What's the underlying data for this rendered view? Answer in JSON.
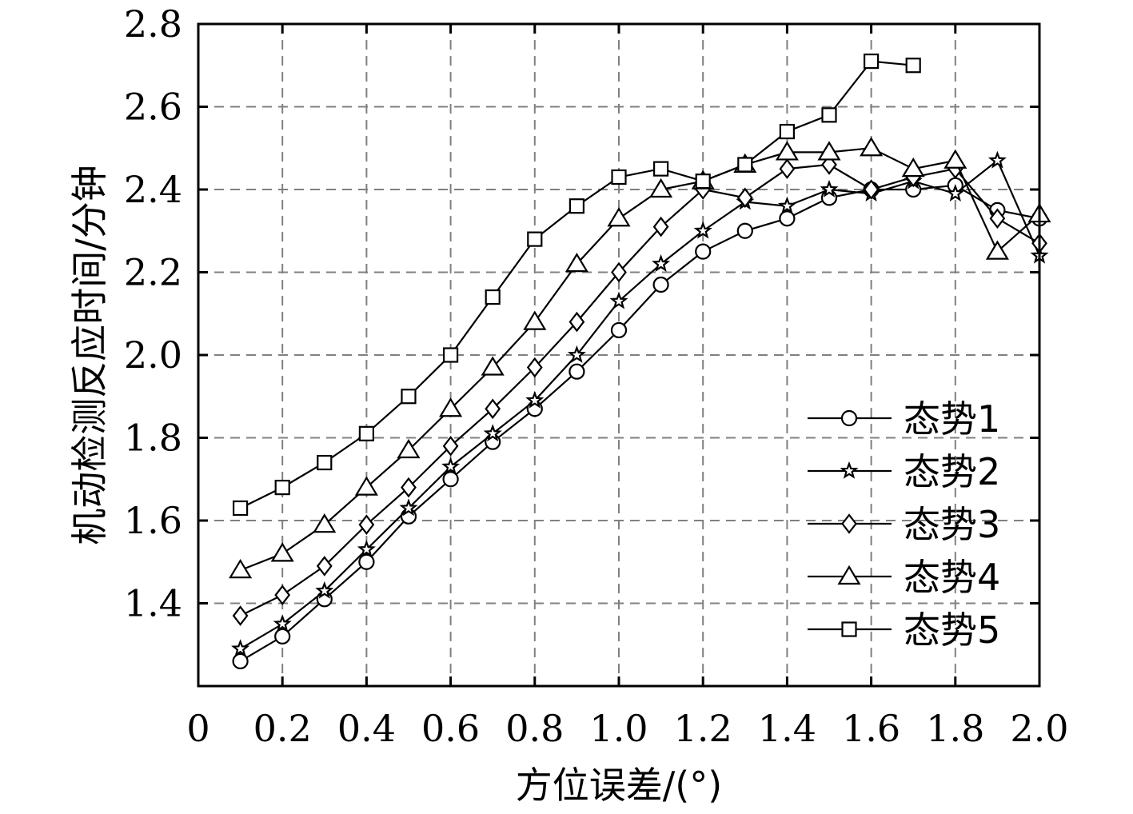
{
  "chart_data": {
    "type": "line",
    "xlabel": "方位误差/(°)",
    "ylabel": "机动检测反应时间/分钟",
    "xlim": [
      0,
      2.0
    ],
    "ylim": [
      1.2,
      2.8
    ],
    "xticks": [
      0,
      0.2,
      0.4,
      0.6,
      0.8,
      1.0,
      1.2,
      1.4,
      1.6,
      1.8,
      2.0
    ],
    "xtick_labels": [
      "0",
      "0.2",
      "0.4",
      "0.6",
      "0.8",
      "1.0",
      "1.2",
      "1.4",
      "1.6",
      "1.8",
      "2.0"
    ],
    "yticks": [
      1.4,
      1.6,
      1.8,
      2.0,
      2.2,
      2.4,
      2.6,
      2.8
    ],
    "ytick_labels": [
      "1.4",
      "1.6",
      "1.8",
      "2.0",
      "2.2",
      "2.4",
      "2.6",
      "2.8"
    ],
    "grid": true,
    "legend_position": "bottom-right",
    "series": [
      {
        "name": "态势1",
        "marker": "circle",
        "x": [
          0.1,
          0.2,
          0.3,
          0.4,
          0.5,
          0.6,
          0.7,
          0.8,
          0.9,
          1.0,
          1.1,
          1.2,
          1.3,
          1.4,
          1.5,
          1.6,
          1.7,
          1.8,
          1.9,
          2.0
        ],
        "y": [
          1.26,
          1.32,
          1.41,
          1.5,
          1.61,
          1.7,
          1.79,
          1.87,
          1.96,
          2.06,
          2.17,
          2.25,
          2.3,
          2.33,
          2.38,
          2.4,
          2.4,
          2.41,
          2.35,
          2.33
        ]
      },
      {
        "name": "态势2",
        "marker": "star",
        "x": [
          0.1,
          0.2,
          0.3,
          0.4,
          0.5,
          0.6,
          0.7,
          0.8,
          0.9,
          1.0,
          1.1,
          1.2,
          1.3,
          1.4,
          1.5,
          1.6,
          1.7,
          1.8,
          1.9,
          2.0
        ],
        "y": [
          1.29,
          1.35,
          1.43,
          1.53,
          1.63,
          1.73,
          1.81,
          1.89,
          2.0,
          2.13,
          2.22,
          2.3,
          2.37,
          2.36,
          2.4,
          2.39,
          2.42,
          2.39,
          2.47,
          2.24
        ]
      },
      {
        "name": "态势3",
        "marker": "diamond",
        "x": [
          0.1,
          0.2,
          0.3,
          0.4,
          0.5,
          0.6,
          0.7,
          0.8,
          0.9,
          1.0,
          1.1,
          1.2,
          1.3,
          1.4,
          1.5,
          1.6,
          1.7,
          1.8,
          1.9,
          2.0
        ],
        "y": [
          1.37,
          1.42,
          1.49,
          1.59,
          1.68,
          1.78,
          1.87,
          1.97,
          2.08,
          2.2,
          2.31,
          2.4,
          2.38,
          2.45,
          2.46,
          2.4,
          2.43,
          2.45,
          2.33,
          2.27
        ]
      },
      {
        "name": "态势4",
        "marker": "triangle",
        "x": [
          0.1,
          0.2,
          0.3,
          0.4,
          0.5,
          0.6,
          0.7,
          0.8,
          0.9,
          1.0,
          1.1,
          1.2,
          1.3,
          1.4,
          1.5,
          1.6,
          1.7,
          1.8,
          1.9,
          2.0
        ],
        "y": [
          1.48,
          1.52,
          1.59,
          1.68,
          1.77,
          1.87,
          1.97,
          2.08,
          2.22,
          2.33,
          2.4,
          2.42,
          2.46,
          2.49,
          2.49,
          2.5,
          2.45,
          2.47,
          2.25,
          2.34
        ]
      },
      {
        "name": "态势5",
        "marker": "square",
        "x": [
          0.1,
          0.2,
          0.3,
          0.4,
          0.5,
          0.6,
          0.7,
          0.8,
          0.9,
          1.0,
          1.1,
          1.2,
          1.3,
          1.4,
          1.5,
          1.6,
          1.7
        ],
        "y": [
          1.63,
          1.68,
          1.74,
          1.81,
          1.9,
          2.0,
          2.14,
          2.28,
          2.36,
          2.43,
          2.45,
          2.42,
          2.46,
          2.54,
          2.58,
          2.71,
          2.7
        ]
      }
    ]
  }
}
